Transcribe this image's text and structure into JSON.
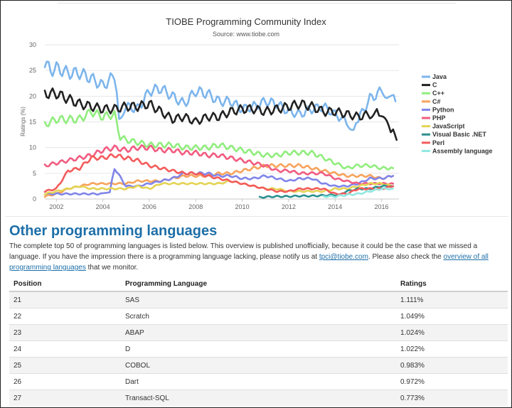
{
  "chart_data": {
    "type": "line",
    "title": "TIOBE Programming Community Index",
    "subtitle": "Source: www.tiobe.com",
    "xlabel": "",
    "ylabel": "Ratings (%)",
    "xlim": [
      2001.5,
      2016.75
    ],
    "ylim": [
      0,
      30
    ],
    "yticks": [
      0,
      5,
      10,
      15,
      20,
      25,
      30
    ],
    "xticks": [
      2002,
      2004,
      2006,
      2008,
      2010,
      2012,
      2014,
      2016
    ],
    "grid": true,
    "legend_position": "right",
    "series": [
      {
        "name": "Java",
        "color": "#7cb5ec",
        "points": [
          [
            2001.5,
            26.5
          ],
          [
            2001.75,
            25
          ],
          [
            2002,
            25.5
          ],
          [
            2002.5,
            24.5
          ],
          [
            2003,
            24.5
          ],
          [
            2003.5,
            23.5
          ],
          [
            2004,
            22
          ],
          [
            2004.5,
            24
          ],
          [
            2004.7,
            16
          ],
          [
            2005,
            18
          ],
          [
            2005.5,
            17.5
          ],
          [
            2006,
            21
          ],
          [
            2006.5,
            21.5
          ],
          [
            2007,
            20
          ],
          [
            2007.5,
            18.5
          ],
          [
            2008,
            21
          ],
          [
            2008.5,
            20.5
          ],
          [
            2009,
            19
          ],
          [
            2009.5,
            19
          ],
          [
            2010,
            17.5
          ],
          [
            2010.5,
            18
          ],
          [
            2011,
            19
          ],
          [
            2011.5,
            18.5
          ],
          [
            2012,
            17
          ],
          [
            2012.5,
            16.5
          ],
          [
            2013,
            17.5
          ],
          [
            2013.5,
            18
          ],
          [
            2014,
            16.5
          ],
          [
            2014.5,
            15
          ],
          [
            2014.8,
            13.5
          ],
          [
            2015,
            15.5
          ],
          [
            2015.5,
            19.5
          ],
          [
            2016,
            21
          ],
          [
            2016.3,
            20.5
          ],
          [
            2016.6,
            19
          ]
        ]
      },
      {
        "name": "C",
        "color": "#222222",
        "points": [
          [
            2001.5,
            20.5
          ],
          [
            2002,
            20.5
          ],
          [
            2002.5,
            19.5
          ],
          [
            2003,
            18.5
          ],
          [
            2003.5,
            18
          ],
          [
            2004,
            17.5
          ],
          [
            2004.5,
            17.5
          ],
          [
            2005,
            18
          ],
          [
            2005.5,
            18
          ],
          [
            2006,
            18.5
          ],
          [
            2006.5,
            17
          ],
          [
            2007,
            15.5
          ],
          [
            2007.5,
            16
          ],
          [
            2008,
            15
          ],
          [
            2008.5,
            16
          ],
          [
            2009,
            16
          ],
          [
            2009.5,
            17
          ],
          [
            2010,
            17.5
          ],
          [
            2010.5,
            17.5
          ],
          [
            2011,
            17
          ],
          [
            2011.5,
            17.5
          ],
          [
            2012,
            18
          ],
          [
            2012.5,
            18.5
          ],
          [
            2013,
            18
          ],
          [
            2013.5,
            17
          ],
          [
            2014,
            17
          ],
          [
            2014.5,
            16.5
          ],
          [
            2015,
            16
          ],
          [
            2015.5,
            16.5
          ],
          [
            2015.8,
            17
          ],
          [
            2016,
            16
          ],
          [
            2016.3,
            14
          ],
          [
            2016.5,
            13
          ],
          [
            2016.65,
            11.5
          ]
        ]
      },
      {
        "name": "C++",
        "color": "#90ed7d",
        "points": [
          [
            2001.5,
            14.5
          ],
          [
            2002,
            15.5
          ],
          [
            2002.5,
            15.5
          ],
          [
            2003,
            15.5
          ],
          [
            2003.5,
            17
          ],
          [
            2004,
            16
          ],
          [
            2004.5,
            16.5
          ],
          [
            2004.75,
            12
          ],
          [
            2005,
            11.5
          ],
          [
            2005.5,
            11
          ],
          [
            2006,
            10.5
          ],
          [
            2006.5,
            10.5
          ],
          [
            2007,
            10.5
          ],
          [
            2007.5,
            10
          ],
          [
            2008,
            10
          ],
          [
            2008.5,
            10
          ],
          [
            2009,
            10.5
          ],
          [
            2009.5,
            10
          ],
          [
            2010,
            9.5
          ],
          [
            2010.5,
            9
          ],
          [
            2011,
            8.5
          ],
          [
            2011.5,
            8.5
          ],
          [
            2012,
            9
          ],
          [
            2012.5,
            9
          ],
          [
            2013,
            9
          ],
          [
            2013.5,
            8
          ],
          [
            2014,
            7
          ],
          [
            2014.5,
            6
          ],
          [
            2015,
            6.5
          ],
          [
            2015.5,
            6.5
          ],
          [
            2016,
            6
          ],
          [
            2016.5,
            6
          ]
        ]
      },
      {
        "name": "C#",
        "color": "#f7a35c",
        "points": [
          [
            2001.5,
            0.5
          ],
          [
            2002,
            1
          ],
          [
            2002.5,
            2
          ],
          [
            2003,
            2.5
          ],
          [
            2003.5,
            3
          ],
          [
            2004,
            3
          ],
          [
            2004.5,
            3
          ],
          [
            2005,
            3
          ],
          [
            2005.5,
            3.5
          ],
          [
            2006,
            3.5
          ],
          [
            2006.5,
            3.5
          ],
          [
            2007,
            4
          ],
          [
            2007.5,
            4.5
          ],
          [
            2008,
            4.5
          ],
          [
            2008.5,
            4.5
          ],
          [
            2009,
            5
          ],
          [
            2009.5,
            5
          ],
          [
            2010,
            5.5
          ],
          [
            2010.5,
            6
          ],
          [
            2011,
            6.5
          ],
          [
            2011.5,
            6.5
          ],
          [
            2012,
            6.5
          ],
          [
            2012.5,
            6.5
          ],
          [
            2013,
            6
          ],
          [
            2013.5,
            5.5
          ],
          [
            2014,
            5
          ],
          [
            2014.5,
            4.5
          ],
          [
            2015,
            4.5
          ],
          [
            2015.5,
            4.5
          ],
          [
            2016,
            4
          ],
          [
            2016.5,
            4.5
          ]
        ]
      },
      {
        "name": "Python",
        "color": "#8085e9",
        "points": [
          [
            2001.5,
            1
          ],
          [
            2002,
            1
          ],
          [
            2002.5,
            1
          ],
          [
            2003,
            1
          ],
          [
            2003.5,
            1
          ],
          [
            2004,
            1
          ],
          [
            2004.3,
            1.5
          ],
          [
            2004.5,
            6
          ],
          [
            2005,
            2.5
          ],
          [
            2005.5,
            2.5
          ],
          [
            2006,
            3
          ],
          [
            2006.5,
            3.5
          ],
          [
            2007,
            4
          ],
          [
            2007.5,
            5
          ],
          [
            2008,
            5
          ],
          [
            2008.5,
            5
          ],
          [
            2009,
            4.5
          ],
          [
            2009.5,
            4.5
          ],
          [
            2010,
            4
          ],
          [
            2010.5,
            4
          ],
          [
            2011,
            4.5
          ],
          [
            2011.5,
            4
          ],
          [
            2012,
            3.5
          ],
          [
            2012.5,
            4
          ],
          [
            2013,
            4
          ],
          [
            2013.5,
            3
          ],
          [
            2014,
            2.5
          ],
          [
            2014.5,
            2.5
          ],
          [
            2015,
            3
          ],
          [
            2015.5,
            4
          ],
          [
            2016,
            4
          ],
          [
            2016.5,
            4.5
          ]
        ]
      },
      {
        "name": "PHP",
        "color": "#f15c80",
        "points": [
          [
            2001.5,
            6.5
          ],
          [
            2002,
            7
          ],
          [
            2002.5,
            7.5
          ],
          [
            2003,
            8
          ],
          [
            2003.5,
            8.5
          ],
          [
            2004,
            9.5
          ],
          [
            2004.5,
            10
          ],
          [
            2005,
            9.5
          ],
          [
            2005.5,
            10
          ],
          [
            2006,
            10
          ],
          [
            2006.5,
            9.5
          ],
          [
            2007,
            9.5
          ],
          [
            2007.5,
            9
          ],
          [
            2008,
            9
          ],
          [
            2008.5,
            8.5
          ],
          [
            2009,
            8.5
          ],
          [
            2009.5,
            8
          ],
          [
            2010,
            7.5
          ],
          [
            2010.5,
            7
          ],
          [
            2011,
            6.5
          ],
          [
            2011.5,
            5.5
          ],
          [
            2012,
            5.5
          ],
          [
            2012.5,
            5
          ],
          [
            2013,
            5
          ],
          [
            2013.5,
            5
          ],
          [
            2014,
            4
          ],
          [
            2014.5,
            3.5
          ],
          [
            2015,
            3
          ],
          [
            2015.5,
            3
          ],
          [
            2016,
            3
          ],
          [
            2016.5,
            3
          ]
        ]
      },
      {
        "name": "JavaScript",
        "color": "#e4d354",
        "points": [
          [
            2001.5,
            1
          ],
          [
            2002,
            1.5
          ],
          [
            2002.5,
            2
          ],
          [
            2003,
            2.5
          ],
          [
            2003.5,
            2
          ],
          [
            2004,
            2
          ],
          [
            2004.5,
            2
          ],
          [
            2005,
            2
          ],
          [
            2005.5,
            2.5
          ],
          [
            2006,
            2
          ],
          [
            2006.5,
            3
          ],
          [
            2007,
            3
          ],
          [
            2007.5,
            3
          ],
          [
            2008,
            3
          ],
          [
            2008.5,
            3
          ],
          [
            2009,
            3
          ],
          [
            2009.5,
            3.5
          ],
          [
            2010,
            3
          ],
          [
            2010.5,
            2.5
          ],
          [
            2011,
            2
          ],
          [
            2011.5,
            2
          ],
          [
            2012,
            1.5
          ],
          [
            2012.5,
            1.5
          ],
          [
            2013,
            1.5
          ],
          [
            2013.5,
            1.5
          ],
          [
            2014,
            2
          ],
          [
            2014.5,
            2
          ],
          [
            2015,
            2.5
          ],
          [
            2015.5,
            3
          ],
          [
            2016,
            3
          ],
          [
            2016.5,
            2.5
          ]
        ]
      },
      {
        "name": "Visual Basic .NET",
        "color": "#2b908f",
        "points": [
          [
            2010.75,
            0.3
          ],
          [
            2011,
            0.4
          ],
          [
            2011.5,
            0.5
          ],
          [
            2012,
            0.5
          ],
          [
            2012.5,
            0.6
          ],
          [
            2013,
            0.6
          ],
          [
            2013.5,
            0.7
          ],
          [
            2014,
            0.8
          ],
          [
            2014.3,
            1
          ],
          [
            2014.5,
            1.5
          ],
          [
            2015,
            2
          ],
          [
            2015.5,
            2
          ],
          [
            2016,
            2.5
          ],
          [
            2016.5,
            2.5
          ]
        ]
      },
      {
        "name": "Perl",
        "color": "#f45b5b",
        "points": [
          [
            2001.5,
            1.5
          ],
          [
            2002,
            2
          ],
          [
            2002.5,
            5.5
          ],
          [
            2003,
            6
          ],
          [
            2003.5,
            8
          ],
          [
            2004,
            8
          ],
          [
            2004.5,
            8.5
          ],
          [
            2005,
            8
          ],
          [
            2005.5,
            7.5
          ],
          [
            2006,
            6.5
          ],
          [
            2006.5,
            6
          ],
          [
            2007,
            5.5
          ],
          [
            2007.5,
            5
          ],
          [
            2008,
            5
          ],
          [
            2008.5,
            4.5
          ],
          [
            2009,
            4
          ],
          [
            2009.5,
            3.5
          ],
          [
            2010,
            3
          ],
          [
            2010.5,
            2.5
          ],
          [
            2011,
            2
          ],
          [
            2011.5,
            1.5
          ],
          [
            2012,
            1.5
          ],
          [
            2012.5,
            2
          ],
          [
            2013,
            2
          ],
          [
            2013.5,
            2
          ],
          [
            2014,
            1
          ],
          [
            2014.5,
            1
          ],
          [
            2015,
            2
          ],
          [
            2015.5,
            2
          ],
          [
            2016,
            2
          ],
          [
            2016.5,
            2.5
          ]
        ]
      },
      {
        "name": "Assembly language",
        "color": "#91e8e1",
        "points": [
          [
            2013.5,
            0.5
          ],
          [
            2014,
            0.5
          ],
          [
            2014.5,
            0.8
          ],
          [
            2015,
            1
          ],
          [
            2015.5,
            1.5
          ],
          [
            2016,
            2
          ],
          [
            2016.5,
            2
          ]
        ]
      }
    ]
  },
  "section": {
    "title": "Other programming languages",
    "intro_1": "The complete top 50 of programming languages is listed below. This overview is published unofficially, because it could be the case that we missed a language. If you have the impression there is a programming language lacking, please notify us at ",
    "email": "tpci@tiobe.com",
    "intro_2": ". Please also check the ",
    "overview_link": "overview of all programming languages",
    "intro_3": " that we monitor."
  },
  "table": {
    "headers": [
      "Position",
      "Programming Language",
      "Ratings"
    ],
    "rows": [
      [
        "21",
        "SAS",
        "1.111%"
      ],
      [
        "22",
        "Scratch",
        "1.049%"
      ],
      [
        "23",
        "ABAP",
        "1.024%"
      ],
      [
        "24",
        "D",
        "1.022%"
      ],
      [
        "25",
        "COBOL",
        "0.983%"
      ],
      [
        "26",
        "Dart",
        "0.972%"
      ],
      [
        "27",
        "Transact-SQL",
        "0.773%"
      ]
    ]
  }
}
